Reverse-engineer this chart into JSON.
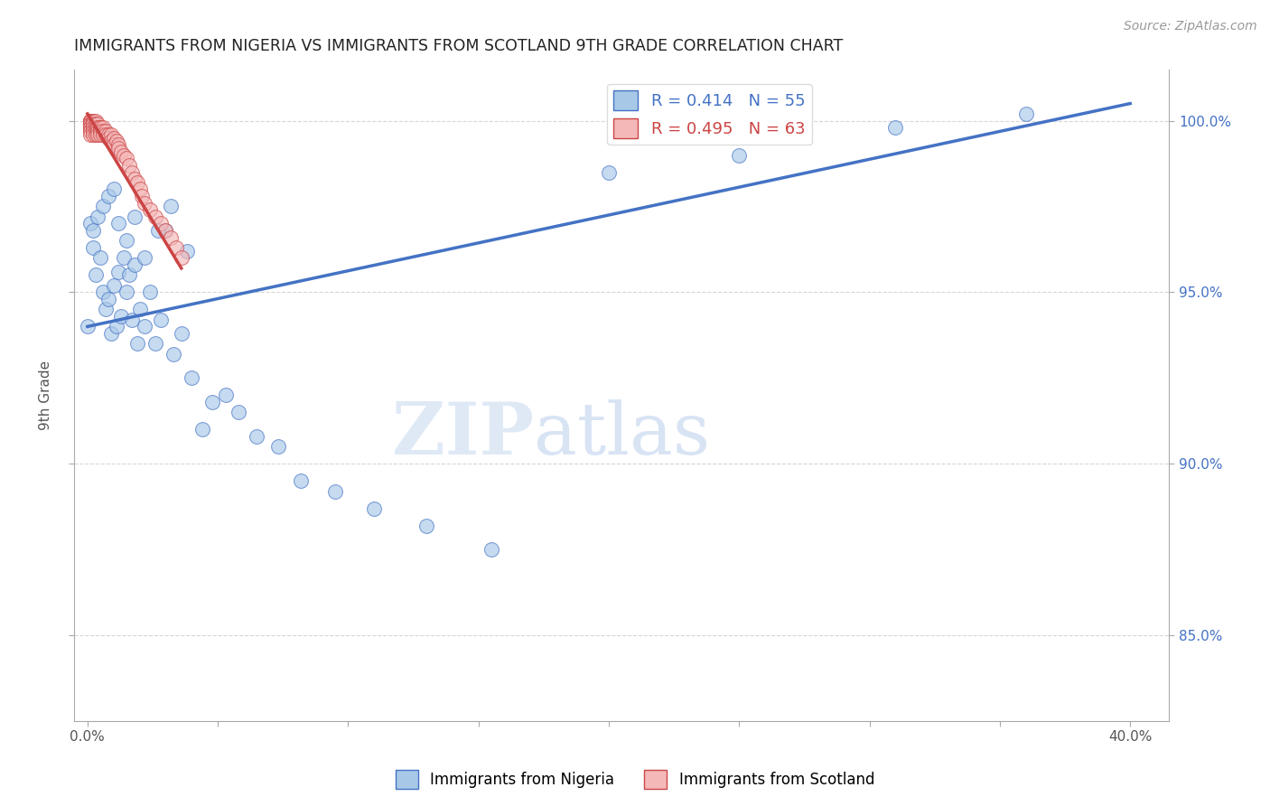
{
  "title": "IMMIGRANTS FROM NIGERIA VS IMMIGRANTS FROM SCOTLAND 9TH GRADE CORRELATION CHART",
  "source": "Source: ZipAtlas.com",
  "ylabel": "9th Grade",
  "nigeria_R": 0.414,
  "nigeria_N": 55,
  "scotland_R": 0.495,
  "scotland_N": 63,
  "nigeria_color": "#a8c8e8",
  "scotland_color": "#f4b8b8",
  "nigeria_line_color": "#4472c4",
  "scotland_line_color": "#cc4444",
  "watermark_zip": "ZIP",
  "watermark_atlas": "atlas",
  "xlim": [
    -0.005,
    0.415
  ],
  "ylim": [
    0.825,
    1.015
  ],
  "nigeria_x": [
    0.001,
    0.002,
    0.002,
    0.003,
    0.004,
    0.005,
    0.006,
    0.007,
    0.008,
    0.009,
    0.01,
    0.011,
    0.012,
    0.013,
    0.014,
    0.015,
    0.016,
    0.017,
    0.018,
    0.019,
    0.02,
    0.022,
    0.024,
    0.026,
    0.028,
    0.03,
    0.033,
    0.036,
    0.04,
    0.044,
    0.048,
    0.053,
    0.058,
    0.065,
    0.073,
    0.082,
    0.095,
    0.11,
    0.13,
    0.155,
    0.006,
    0.008,
    0.01,
    0.012,
    0.015,
    0.018,
    0.022,
    0.027,
    0.032,
    0.038,
    0.2,
    0.25,
    0.31,
    0.36,
    0.0
  ],
  "nigeria_y": [
    0.97,
    0.963,
    0.968,
    0.955,
    0.972,
    0.96,
    0.95,
    0.945,
    0.948,
    0.938,
    0.952,
    0.94,
    0.956,
    0.943,
    0.96,
    0.95,
    0.955,
    0.942,
    0.958,
    0.935,
    0.945,
    0.94,
    0.95,
    0.935,
    0.942,
    0.968,
    0.932,
    0.938,
    0.925,
    0.91,
    0.918,
    0.92,
    0.915,
    0.908,
    0.905,
    0.895,
    0.892,
    0.887,
    0.882,
    0.875,
    0.975,
    0.978,
    0.98,
    0.97,
    0.965,
    0.972,
    0.96,
    0.968,
    0.975,
    0.962,
    0.985,
    0.99,
    0.998,
    1.002,
    0.94
  ],
  "nigeria_line_x": [
    0.0,
    0.4
  ],
  "nigeria_line_y": [
    0.94,
    1.005
  ],
  "scotland_x": [
    0.001,
    0.001,
    0.001,
    0.001,
    0.001,
    0.001,
    0.001,
    0.001,
    0.001,
    0.001,
    0.001,
    0.001,
    0.002,
    0.002,
    0.002,
    0.002,
    0.002,
    0.002,
    0.002,
    0.003,
    0.003,
    0.003,
    0.003,
    0.003,
    0.004,
    0.004,
    0.004,
    0.004,
    0.005,
    0.005,
    0.005,
    0.005,
    0.006,
    0.006,
    0.006,
    0.007,
    0.007,
    0.008,
    0.008,
    0.009,
    0.009,
    0.01,
    0.01,
    0.011,
    0.012,
    0.012,
    0.013,
    0.014,
    0.015,
    0.016,
    0.017,
    0.018,
    0.019,
    0.02,
    0.021,
    0.022,
    0.024,
    0.026,
    0.028,
    0.03,
    0.032,
    0.034,
    0.036
  ],
  "scotland_y": [
    1.0,
    1.0,
    1.0,
    1.0,
    1.0,
    0.999,
    0.999,
    0.998,
    0.998,
    0.997,
    0.997,
    0.996,
    1.0,
    1.0,
    0.999,
    0.999,
    0.998,
    0.997,
    0.996,
    1.0,
    0.999,
    0.998,
    0.997,
    0.996,
    0.999,
    0.998,
    0.997,
    0.996,
    0.998,
    0.998,
    0.997,
    0.996,
    0.998,
    0.997,
    0.996,
    0.997,
    0.996,
    0.996,
    0.995,
    0.996,
    0.994,
    0.995,
    0.993,
    0.994,
    0.993,
    0.992,
    0.991,
    0.99,
    0.989,
    0.987,
    0.985,
    0.983,
    0.982,
    0.98,
    0.978,
    0.976,
    0.974,
    0.972,
    0.97,
    0.968,
    0.966,
    0.963,
    0.96
  ],
  "scotland_line_x": [
    0.0,
    0.036
  ],
  "scotland_line_y": [
    1.002,
    0.957
  ]
}
